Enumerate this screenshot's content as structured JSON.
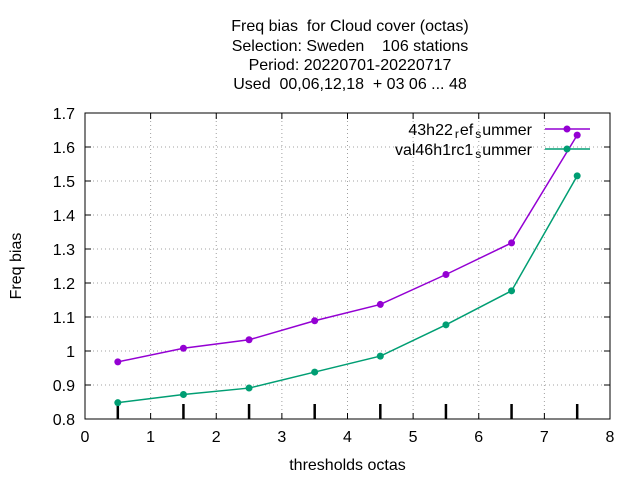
{
  "chart_data": {
    "type": "line",
    "title_lines": [
      "Freq bias  for Cloud cover (octas)",
      "Selection: Sweden    106 stations",
      "Period: 20220701-20220717",
      "Used  00,06,12,18  + 03 06 ... 48"
    ],
    "xlabel": "thresholds octas",
    "ylabel": "Freq bias",
    "xlim": [
      0,
      8
    ],
    "ylim": [
      0.8,
      1.7
    ],
    "xticks": [
      "0",
      "1",
      "2",
      "3",
      "4",
      "5",
      "6",
      "7",
      "8"
    ],
    "yticks": [
      "0.8",
      "0.9",
      "1",
      "1.1",
      "1.2",
      "1.3",
      "1.4",
      "1.5",
      "1.6",
      "1.7"
    ],
    "grid": true,
    "legend_position": "top-right",
    "x": [
      0.5,
      1.5,
      2.5,
      3.5,
      4.5,
      5.5,
      6.5,
      7.5
    ],
    "series": [
      {
        "name_parts": [
          "43h22",
          "r",
          "ef",
          "s",
          "ummer"
        ],
        "color": "#9400d3",
        "values": [
          0.968,
          1.008,
          1.033,
          1.089,
          1.137,
          1.225,
          1.318,
          1.635
        ]
      },
      {
        "name_parts": [
          "val46h1rc1",
          "s",
          "ummer"
        ],
        "color": "#009e73",
        "values": [
          0.848,
          0.872,
          0.891,
          0.938,
          0.985,
          1.077,
          1.177,
          1.515
        ]
      }
    ]
  }
}
